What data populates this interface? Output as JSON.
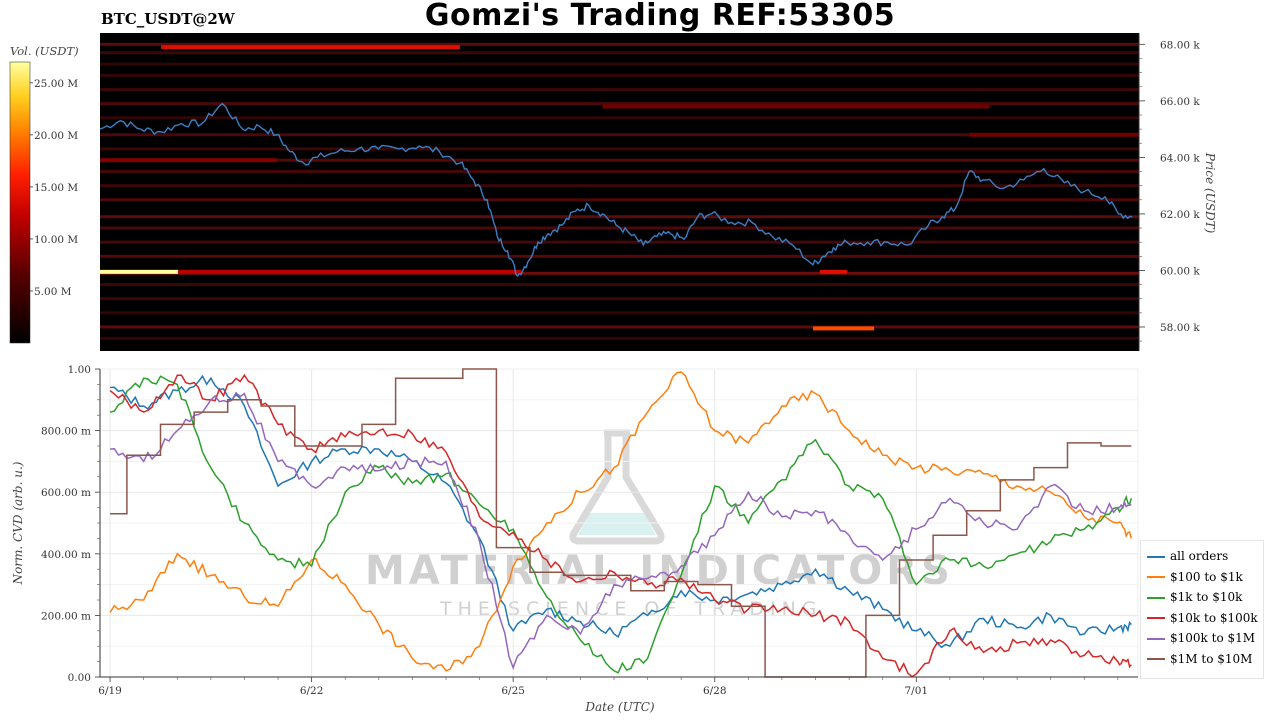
{
  "header": {
    "pair": "BTC_USDT@2W",
    "title": "Gomzi's Trading REF:53305"
  },
  "watermark": {
    "line1": "MATERIAL INDICATORS",
    "line2": "THE SCIENCE OF TRADING"
  },
  "chart_data": [
    {
      "type": "heatmap",
      "colorbar_label": "Vol. (USDT)",
      "colorbar_ticks": [
        "25.00 M",
        "20.00 M",
        "15.00 M",
        "10.00 M",
        "5.00 M"
      ],
      "colorbar_values": [
        25,
        20,
        15,
        10,
        5
      ],
      "colorbar_range": [
        0,
        27
      ],
      "ylabel": "Price (USDT)",
      "y_ticks": [
        "68.00 k",
        "66.00 k",
        "64.00 k",
        "62.00 k",
        "60.00 k",
        "58.00 k"
      ],
      "y_values": [
        68000,
        66000,
        64000,
        62000,
        60000,
        58000
      ],
      "ylim": [
        57150,
        68400
      ],
      "x_range_days": [
        0,
        15.3
      ],
      "price_series_color": "#3a7fc4",
      "price": {
        "t": [
          0,
          0.3,
          0.6,
          0.9,
          1.2,
          1.5,
          1.8,
          2.1,
          2.35,
          2.6,
          2.8,
          3.0,
          3.2,
          3.5,
          3.8,
          4.1,
          4.4,
          4.7,
          5.0,
          5.3,
          5.5,
          5.7,
          5.85,
          6.0,
          6.15,
          6.3,
          6.45,
          6.6,
          6.8,
          7.0,
          7.2,
          7.4,
          7.6,
          7.8,
          8.0,
          8.2,
          8.4,
          8.6,
          8.8,
          9.0,
          9.3,
          9.6,
          9.9,
          10.2,
          10.5,
          10.65,
          10.8,
          11.0,
          11.3,
          11.6,
          11.9,
          12.2,
          12.4,
          12.6,
          12.8,
          13.0,
          13.3,
          13.6,
          13.9,
          14.2,
          14.5,
          14.8,
          15.0,
          15.2
        ],
        "v": [
          65000,
          65300,
          65000,
          64900,
          65200,
          65200,
          65900,
          65000,
          65100,
          64800,
          64200,
          63800,
          64000,
          64200,
          64300,
          64300,
          64300,
          64400,
          64200,
          63800,
          63200,
          62500,
          61200,
          60700,
          59800,
          60300,
          61000,
          61300,
          61600,
          62100,
          62300,
          62000,
          61600,
          61300,
          60900,
          61200,
          61300,
          61100,
          61900,
          62000,
          61700,
          61700,
          61200,
          60900,
          60200,
          60500,
          60800,
          61000,
          61000,
          61000,
          60900,
          61600,
          61900,
          62200,
          63500,
          63200,
          62900,
          63200,
          63600,
          63100,
          62800,
          62600,
          62000,
          61900
        ]
      },
      "levels": [
        {
          "price": 68000,
          "intensity": 0.55
        },
        {
          "price": 67700,
          "intensity": 0.35
        },
        {
          "price": 67300,
          "intensity": 0.3
        },
        {
          "price": 66900,
          "intensity": 0.3
        },
        {
          "price": 66400,
          "intensity": 0.35
        },
        {
          "price": 65900,
          "intensity": 0.45
        },
        {
          "price": 65400,
          "intensity": 0.3
        },
        {
          "price": 64800,
          "intensity": 0.45
        },
        {
          "price": 64300,
          "intensity": 0.35
        },
        {
          "price": 63900,
          "intensity": 0.5
        },
        {
          "price": 63500,
          "intensity": 0.4
        },
        {
          "price": 63000,
          "intensity": 0.35
        },
        {
          "price": 62500,
          "intensity": 0.45
        },
        {
          "price": 61900,
          "intensity": 0.55
        },
        {
          "price": 61500,
          "intensity": 0.45
        },
        {
          "price": 61000,
          "intensity": 0.4
        },
        {
          "price": 60500,
          "intensity": 0.5
        },
        {
          "price": 59900,
          "intensity": 0.65
        },
        {
          "price": 59500,
          "intensity": 0.35
        },
        {
          "price": 59000,
          "intensity": 0.35
        },
        {
          "price": 58500,
          "intensity": 0.3
        },
        {
          "price": 58000,
          "intensity": 0.55
        },
        {
          "price": 57600,
          "intensity": 0.3
        }
      ],
      "highlights": [
        {
          "price": 67900,
          "t0": 0.9,
          "t1": 5.3,
          "volume": 14
        },
        {
          "price": 59950,
          "t0": 0.0,
          "t1": 1.15,
          "volume": 27
        },
        {
          "price": 59950,
          "t0": 1.15,
          "t1": 6.2,
          "volume": 12
        },
        {
          "price": 59950,
          "t0": 10.6,
          "t1": 11.0,
          "volume": 14
        },
        {
          "price": 57950,
          "t0": 10.5,
          "t1": 11.4,
          "volume": 18
        },
        {
          "price": 63900,
          "t0": 0.0,
          "t1": 2.6,
          "volume": 9
        },
        {
          "price": 65800,
          "t0": 7.4,
          "t1": 13.1,
          "volume": 8
        },
        {
          "price": 64800,
          "t0": 12.8,
          "t1": 15.3,
          "volume": 8
        }
      ]
    },
    {
      "type": "line",
      "xlabel": "Date (UTC)",
      "ylabel": "Norm. CVD (arb. u.)",
      "x_ticks": [
        "6/19",
        "6/22",
        "6/25",
        "6/28",
        "7/01"
      ],
      "x_tick_values": [
        0,
        3,
        6,
        9,
        12
      ],
      "xlim": [
        -0.15,
        15.3
      ],
      "y_ticks": [
        "1.00",
        "800.00 m",
        "600.00 m",
        "400.00 m",
        "200.00 m",
        "0.00"
      ],
      "y_tick_values": [
        1.0,
        0.8,
        0.6,
        0.4,
        0.2,
        0.0
      ],
      "ylim": [
        0,
        1.0
      ],
      "grid": true,
      "legend_position": "bottom-right",
      "x": [
        0,
        0.5,
        1.0,
        1.5,
        2.0,
        2.5,
        3.0,
        3.5,
        4.0,
        4.5,
        5.0,
        5.5,
        6.0,
        6.5,
        7.0,
        7.5,
        8.0,
        8.5,
        9.0,
        9.5,
        10.0,
        10.5,
        11.0,
        11.5,
        12.0,
        12.5,
        13.0,
        13.5,
        14.0,
        14.5,
        15.0,
        15.2
      ],
      "series": [
        {
          "name": "all orders",
          "color": "#1f77b4",
          "values": [
            0.94,
            0.88,
            0.93,
            0.97,
            0.88,
            0.62,
            0.7,
            0.74,
            0.74,
            0.7,
            0.63,
            0.45,
            0.15,
            0.22,
            0.18,
            0.14,
            0.2,
            0.28,
            0.25,
            0.27,
            0.3,
            0.35,
            0.28,
            0.22,
            0.15,
            0.1,
            0.19,
            0.16,
            0.2,
            0.14,
            0.16,
            0.17
          ]
        },
        {
          "name": "$100 to $1k",
          "color": "#ff7f0e",
          "values": [
            0.21,
            0.25,
            0.4,
            0.33,
            0.26,
            0.23,
            0.38,
            0.3,
            0.17,
            0.06,
            0.02,
            0.1,
            0.36,
            0.5,
            0.6,
            0.68,
            0.86,
            0.99,
            0.8,
            0.76,
            0.88,
            0.92,
            0.8,
            0.72,
            0.68,
            0.67,
            0.66,
            0.62,
            0.6,
            0.52,
            0.5,
            0.45
          ]
        },
        {
          "name": "$1k to $10k",
          "color": "#2ca02c",
          "values": [
            0.86,
            0.97,
            0.95,
            0.68,
            0.5,
            0.38,
            0.36,
            0.6,
            0.68,
            0.63,
            0.66,
            0.56,
            0.48,
            0.26,
            0.12,
            0.02,
            0.06,
            0.33,
            0.62,
            0.5,
            0.64,
            0.77,
            0.62,
            0.58,
            0.3,
            0.38,
            0.36,
            0.4,
            0.44,
            0.48,
            0.55,
            0.58
          ]
        },
        {
          "name": "$10k to $100k",
          "color": "#d62728",
          "values": [
            0.93,
            0.86,
            0.98,
            0.9,
            0.98,
            0.82,
            0.74,
            0.78,
            0.8,
            0.79,
            0.73,
            0.52,
            0.47,
            0.38,
            0.31,
            0.34,
            0.3,
            0.32,
            0.25,
            0.22,
            0.22,
            0.2,
            0.18,
            0.06,
            0.01,
            0.15,
            0.08,
            0.11,
            0.12,
            0.07,
            0.05,
            0.04
          ]
        },
        {
          "name": "$100k to $1M",
          "color": "#9467bd",
          "values": [
            0.74,
            0.7,
            0.8,
            0.9,
            0.92,
            0.7,
            0.62,
            0.68,
            0.67,
            0.7,
            0.7,
            0.44,
            0.03,
            0.2,
            0.14,
            0.3,
            0.32,
            0.36,
            0.46,
            0.6,
            0.52,
            0.54,
            0.46,
            0.38,
            0.48,
            0.58,
            0.5,
            0.48,
            0.62,
            0.54,
            0.55,
            0.56
          ]
        },
        {
          "name": "$1M to $10M",
          "color": "#8c564b",
          "values": [
            0.53,
            0.72,
            0.82,
            0.86,
            0.9,
            0.88,
            0.75,
            0.75,
            0.82,
            0.97,
            0.97,
            1.0,
            0.42,
            0.34,
            0.33,
            0.33,
            0.28,
            0.31,
            0.3,
            0.23,
            0.0,
            0.0,
            0.0,
            0.2,
            0.38,
            0.46,
            0.54,
            0.64,
            0.68,
            0.76,
            0.75,
            0.75
          ]
        }
      ]
    }
  ]
}
